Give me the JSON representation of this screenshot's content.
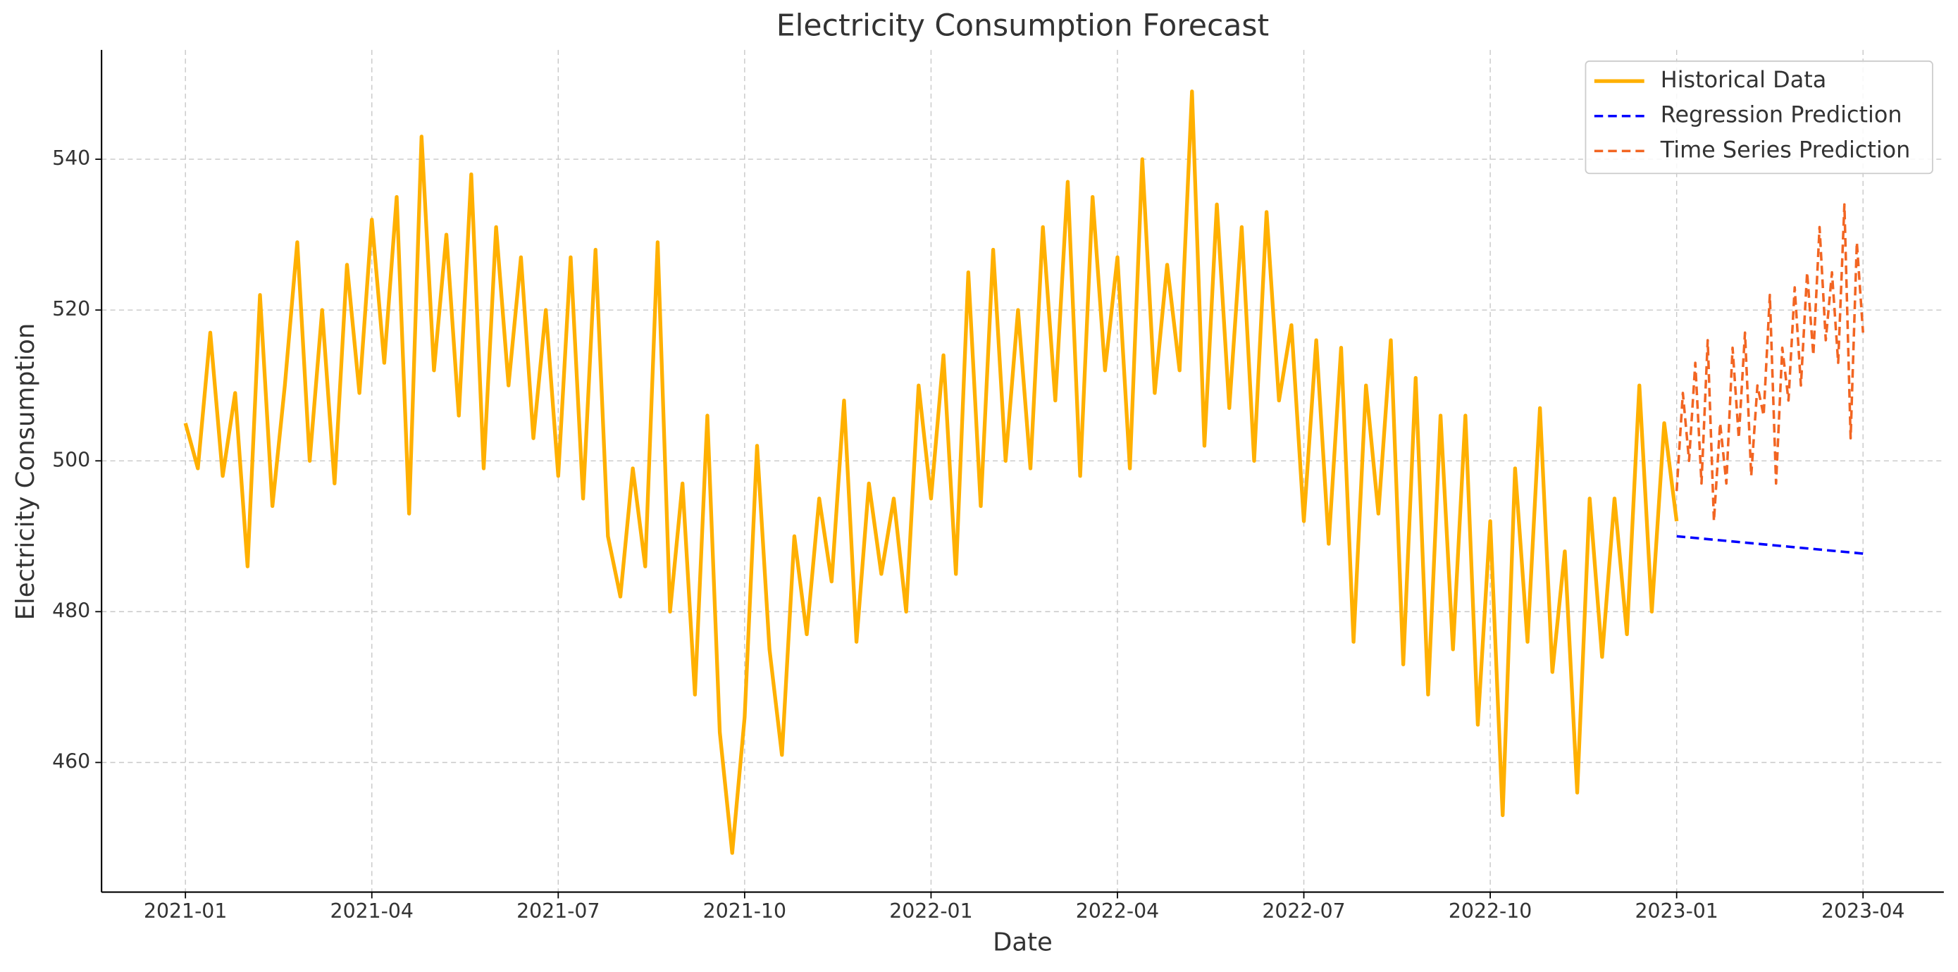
{
  "chart_data": {
    "type": "line",
    "title": "Electricity Consumption Forecast",
    "x_label": "Date",
    "y_label": "Electricity Consumption",
    "xlim": [
      -1.35,
      28.3
    ],
    "ylim": [
      442.8,
      554.5
    ],
    "xticks": [
      {
        "value": 0,
        "label": "2021-01"
      },
      {
        "value": 3,
        "label": "2021-04"
      },
      {
        "value": 6,
        "label": "2021-07"
      },
      {
        "value": 9,
        "label": "2021-10"
      },
      {
        "value": 12,
        "label": "2022-01"
      },
      {
        "value": 15,
        "label": "2022-04"
      },
      {
        "value": 18,
        "label": "2022-07"
      },
      {
        "value": 21,
        "label": "2022-10"
      },
      {
        "value": 24,
        "label": "2023-01"
      },
      {
        "value": 27,
        "label": "2023-04"
      }
    ],
    "yticks": [
      460,
      480,
      500,
      520,
      540
    ],
    "grid": true,
    "legend": "upper right",
    "series": [
      {
        "name": "Historical Data",
        "color": "#ffb000",
        "linestyle": "solid",
        "x": [
          0,
          0.2,
          0.4,
          0.6,
          0.8,
          1,
          1.2,
          1.4,
          1.6,
          1.8,
          2,
          2.2,
          2.4,
          2.6,
          2.8,
          3,
          3.2,
          3.4,
          3.6,
          3.8,
          4,
          4.2,
          4.4,
          4.6,
          4.8,
          5,
          5.2,
          5.4,
          5.6,
          5.8,
          6,
          6.2,
          6.4,
          6.6,
          6.8,
          7,
          7.2,
          7.4,
          7.6,
          7.8,
          8,
          8.2,
          8.4,
          8.6,
          8.8,
          9,
          9.2,
          9.4,
          9.6,
          9.8,
          10,
          10.2,
          10.4,
          10.6,
          10.8,
          11,
          11.2,
          11.4,
          11.6,
          11.8,
          12,
          12.2,
          12.4,
          12.6,
          12.8,
          13,
          13.2,
          13.4,
          13.6,
          13.8,
          14,
          14.2,
          14.4,
          14.6,
          14.8,
          15,
          15.2,
          15.4,
          15.6,
          15.8,
          16,
          16.2,
          16.4,
          16.6,
          16.8,
          17,
          17.2,
          17.4,
          17.6,
          17.8,
          18,
          18.2,
          18.4,
          18.6,
          18.8,
          19,
          19.2,
          19.4,
          19.6,
          19.8,
          20,
          20.2,
          20.4,
          20.6,
          20.8,
          21,
          21.2,
          21.4,
          21.6,
          21.8,
          22,
          22.2,
          22.4,
          22.6,
          22.8,
          23,
          23.2,
          23.4,
          23.6,
          23.8,
          24
        ],
        "values": [
          505,
          499,
          517,
          498,
          509,
          486,
          522,
          494,
          510,
          529,
          500,
          520,
          497,
          526,
          509,
          532,
          513,
          535,
          493,
          543,
          512,
          530,
          506,
          538,
          499,
          531,
          510,
          527,
          503,
          520,
          498,
          527,
          495,
          528,
          490,
          482,
          499,
          486,
          529,
          480,
          497,
          469,
          506,
          464,
          448,
          466,
          502,
          475,
          461,
          490,
          477,
          495,
          484,
          508,
          476,
          497,
          485,
          495,
          480,
          510,
          495,
          514,
          485,
          525,
          494,
          528,
          500,
          520,
          499,
          531,
          508,
          537,
          498,
          535,
          512,
          527,
          499,
          540,
          509,
          526,
          512,
          549,
          502,
          534,
          507,
          531,
          500,
          533,
          508,
          518,
          492,
          516,
          489,
          515,
          476,
          510,
          493,
          516,
          473,
          511,
          469,
          506,
          475,
          506,
          465,
          492,
          453,
          499,
          476,
          507,
          472,
          488,
          456,
          495,
          474,
          495,
          477,
          510,
          480,
          505,
          492
        ]
      },
      {
        "name": "Regression Prediction",
        "color": "#0000ff",
        "linestyle": "dashed",
        "x": [
          24,
          27
        ],
        "values": [
          490,
          487.7
        ]
      },
      {
        "name": "Time Series Prediction",
        "color": "#f26522",
        "linestyle": "dashed",
        "x": [
          24,
          24.1,
          24.2,
          24.3,
          24.4,
          24.5,
          24.6,
          24.7,
          24.8,
          24.9,
          25,
          25.1,
          25.2,
          25.3,
          25.4,
          25.5,
          25.6,
          25.7,
          25.8,
          25.9,
          26,
          26.1,
          26.2,
          26.3,
          26.4,
          26.5,
          26.6,
          26.7,
          26.8,
          26.9,
          27
        ],
        "values": [
          496,
          509,
          500,
          513,
          497,
          516,
          492,
          505,
          497,
          515,
          503,
          517,
          498,
          510,
          506,
          522,
          497,
          515,
          508,
          523,
          510,
          525,
          514,
          531,
          516,
          525,
          513,
          534,
          503,
          529,
          517
        ]
      }
    ]
  }
}
